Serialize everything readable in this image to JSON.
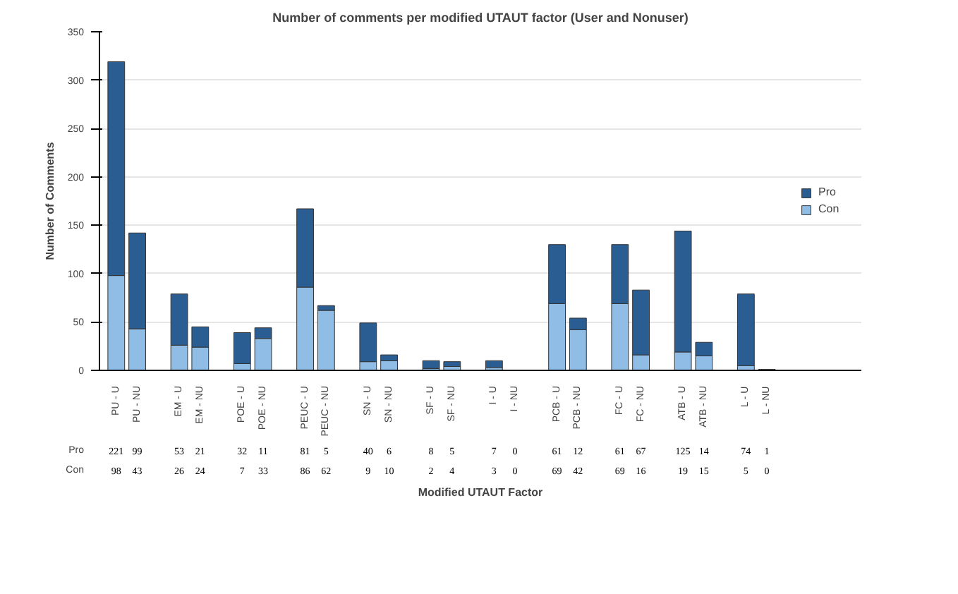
{
  "chart_data": {
    "type": "bar",
    "title": "Number of comments per modified UTAUT factor (User and Nonuser)",
    "xlabel": "Modified UTAUT Factor",
    "ylabel": "Number of Comments",
    "categories": [
      "PU - U",
      "PU - NU",
      "EM - U",
      "EM - NU",
      "POE - U",
      "POE - NU",
      "PEUC - U",
      "PEUC - NU",
      "SN - U",
      "SN - NU",
      "SF - U",
      "SF - NU",
      "I - U",
      "I - NU",
      "PCB - U",
      "PCB - NU",
      "FC - U",
      "FC - NU",
      "ATB - U",
      "ATB - NU",
      "L - U",
      "L - NU"
    ],
    "stacked": true,
    "series": [
      {
        "name": "Con",
        "color": "#8fbde6",
        "values": [
          98,
          43,
          26,
          24,
          7,
          33,
          86,
          62,
          9,
          10,
          2,
          4,
          3,
          0,
          69,
          42,
          69,
          16,
          19,
          15,
          5,
          0
        ]
      },
      {
        "name": "Pro",
        "color": "#2a5d92",
        "values": [
          221,
          99,
          53,
          21,
          32,
          11,
          81,
          5,
          40,
          6,
          8,
          5,
          7,
          0,
          61,
          12,
          61,
          67,
          125,
          14,
          74,
          1
        ]
      }
    ],
    "ylim": [
      0,
      350
    ],
    "yticks": [
      0,
      50,
      100,
      150,
      200,
      250,
      300,
      350
    ],
    "grid": "y",
    "legend": "right",
    "data_labels": true
  }
}
